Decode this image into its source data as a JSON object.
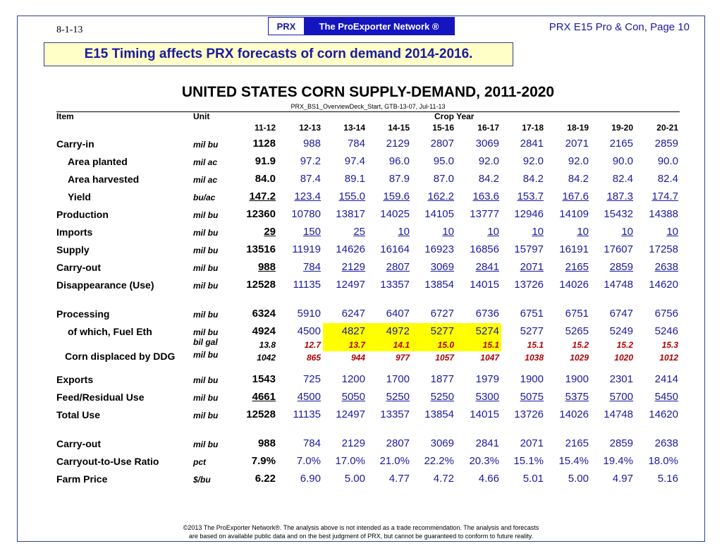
{
  "header": {
    "date": "8-1-13",
    "badge_abbr": "PRX",
    "badge_network": "The ProExporter  Network ®",
    "page_ref": "PRX E15 Pro & Con, Page 10"
  },
  "headline": "E15 Timing affects PRX forecasts of corn demand 2014-2016.",
  "table": {
    "title": "UNITED STATES CORN SUPPLY-DEMAND, 2011-2020",
    "source": "PRX_BS1_OverviewDeck_Start, GTB-13-07, Jul-11-13",
    "col_item": "Item",
    "col_unit": "Unit",
    "col_group": "Crop Year",
    "years": [
      "11-12",
      "12-13",
      "13-14",
      "14-15",
      "15-16",
      "16-17",
      "17-18",
      "18-19",
      "19-20",
      "20-21"
    ],
    "rows": [
      {
        "label": "Carry-in",
        "unit": "mil bu",
        "values": [
          "1128",
          "988",
          "784",
          "2129",
          "2807",
          "3069",
          "2841",
          "2071",
          "2165",
          "2859"
        ]
      },
      {
        "label": "Area planted",
        "unit": "mil ac",
        "values": [
          "91.9",
          "97.2",
          "97.4",
          "96.0",
          "95.0",
          "92.0",
          "92.0",
          "92.0",
          "90.0",
          "90.0"
        ]
      },
      {
        "label": "Area harvested",
        "unit": "mil ac",
        "values": [
          "84.0",
          "87.4",
          "89.1",
          "87.9",
          "87.0",
          "84.2",
          "84.2",
          "84.2",
          "82.4",
          "82.4"
        ]
      },
      {
        "label": "Yield",
        "unit": "bu/ac",
        "values": [
          "147.2",
          "123.4",
          "155.0",
          "159.6",
          "162.2",
          "163.6",
          "153.7",
          "167.6",
          "187.3",
          "174.7"
        ]
      },
      {
        "label": "Production",
        "unit": "mil bu",
        "values": [
          "12360",
          "10780",
          "13817",
          "14025",
          "14105",
          "13777",
          "12946",
          "14109",
          "15432",
          "14388"
        ]
      },
      {
        "label": "Imports",
        "unit": "mil bu",
        "values": [
          "29",
          "150",
          "25",
          "10",
          "10",
          "10",
          "10",
          "10",
          "10",
          "10"
        ]
      },
      {
        "label": "Supply",
        "unit": "mil bu",
        "values": [
          "13516",
          "11919",
          "14626",
          "16164",
          "16923",
          "16856",
          "15797",
          "16191",
          "17607",
          "17258"
        ]
      },
      {
        "label": "Carry-out",
        "unit": "mil bu",
        "values": [
          "988",
          "784",
          "2129",
          "2807",
          "3069",
          "2841",
          "2071",
          "2165",
          "2859",
          "2638"
        ]
      },
      {
        "label": "Disappearance (Use)",
        "unit": "mil bu",
        "values": [
          "12528",
          "11135",
          "12497",
          "13357",
          "13854",
          "14015",
          "13726",
          "14026",
          "14748",
          "14620"
        ]
      },
      {
        "label": "Processing",
        "unit": "mil bu",
        "values": [
          "6324",
          "5910",
          "6247",
          "6407",
          "6727",
          "6736",
          "6751",
          "6751",
          "6747",
          "6756"
        ]
      },
      {
        "label": "of which, Fuel Eth",
        "unit": "mil bu",
        "values": [
          "4924",
          "4500",
          "4827",
          "4972",
          "5277",
          "5274",
          "5277",
          "5265",
          "5249",
          "5246"
        ]
      },
      {
        "label": "",
        "unit": "bil gal",
        "values": [
          "13.8",
          "12.7",
          "13.7",
          "14.1",
          "15.0",
          "15.1",
          "15.1",
          "15.2",
          "15.2",
          "15.3"
        ]
      },
      {
        "label": "Corn displaced by DDG",
        "unit": "mil bu",
        "values": [
          "1042",
          "865",
          "944",
          "977",
          "1057",
          "1047",
          "1038",
          "1029",
          "1020",
          "1012"
        ]
      },
      {
        "label": "Exports",
        "unit": "mil bu",
        "values": [
          "1543",
          "725",
          "1200",
          "1700",
          "1877",
          "1979",
          "1900",
          "1900",
          "2301",
          "2414"
        ]
      },
      {
        "label": "Feed/Residual Use",
        "unit": "mil bu",
        "values": [
          "4661",
          "4500",
          "5050",
          "5250",
          "5250",
          "5300",
          "5075",
          "5375",
          "5700",
          "5450"
        ]
      },
      {
        "label": "Total Use",
        "unit": "mil bu",
        "values": [
          "12528",
          "11135",
          "12497",
          "13357",
          "13854",
          "14015",
          "13726",
          "14026",
          "14748",
          "14620"
        ]
      },
      {
        "label": "Carry-out",
        "unit": "mil bu",
        "values": [
          "988",
          "784",
          "2129",
          "2807",
          "3069",
          "2841",
          "2071",
          "2165",
          "2859",
          "2638"
        ]
      },
      {
        "label": "Carryout-to-Use Ratio",
        "unit": "pct",
        "values": [
          "7.9%",
          "7.0%",
          "17.0%",
          "21.0%",
          "22.2%",
          "20.3%",
          "15.1%",
          "15.4%",
          "19.4%",
          "18.0%"
        ]
      },
      {
        "label": "Farm Price",
        "unit": "$/bu",
        "values": [
          "6.22",
          "6.90",
          "5.00",
          "4.77",
          "4.72",
          "4.66",
          "5.01",
          "5.00",
          "4.97",
          "5.16"
        ]
      }
    ]
  },
  "footer": {
    "line1": "©2013 The ProExporter Network®.  The analysis above is not intended as a trade recommendation. The analysis and forecasts",
    "line2": "are based on available public data and on the best judgment of PRX, but cannot be guaranteed to conform to future reality."
  },
  "colors": {
    "accent_blue": "#1a1aa0",
    "highlight_yellow": "#ffff00",
    "headline_bg": "#ffffc8",
    "small_red": "#b00000"
  }
}
